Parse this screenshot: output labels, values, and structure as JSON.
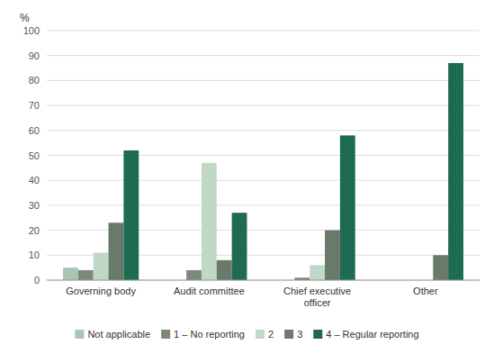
{
  "chart_data": {
    "type": "bar",
    "ylabel": "%",
    "categories": [
      "Governing body",
      "Audit committee",
      "Chief executive\nofficer",
      "Other"
    ],
    "series": [
      {
        "name": "Not applicable",
        "color": "#a8c5b5",
        "values": [
          5,
          0,
          0,
          0
        ]
      },
      {
        "name": "1 – No reporting",
        "color": "#7a8a7a",
        "values": [
          4,
          4,
          1,
          0
        ]
      },
      {
        "name": "2",
        "color": "#c0d8c8",
        "values": [
          11,
          47,
          6,
          0
        ]
      },
      {
        "name": "3",
        "color": "#6a7a6a",
        "values": [
          23,
          8,
          20,
          10
        ]
      },
      {
        "name": "4 – Regular reporting",
        "color": "#1e6b52",
        "values": [
          52,
          27,
          58,
          87
        ]
      }
    ],
    "ylim": [
      0,
      100
    ],
    "yticks": [
      0,
      10,
      20,
      30,
      40,
      50,
      60,
      70,
      80,
      90,
      100
    ],
    "grid": true,
    "legend": "bottom"
  }
}
